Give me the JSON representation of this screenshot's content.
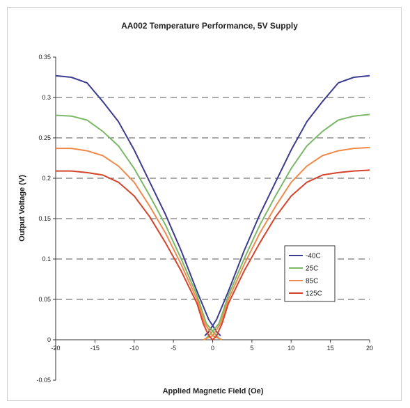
{
  "chart_data": {
    "type": "line",
    "title": "AA002 Temperature Performance, 5V Supply",
    "xlabel": "Applied Magnetic Field (Oe)",
    "ylabel": "Output Voltage (V)",
    "xlim": [
      -20,
      20
    ],
    "ylim": [
      -0.05,
      0.35
    ],
    "xticks": [
      -20,
      -15,
      -10,
      -5,
      0,
      5,
      10,
      15,
      20
    ],
    "yticks": [
      -0.05,
      0,
      0.05,
      0.1,
      0.15,
      0.2,
      0.25,
      0.3,
      0.35
    ],
    "xtick_labels": [
      "-20",
      "-15",
      "-10",
      "-5",
      "0",
      "5",
      "10",
      "15",
      "20"
    ],
    "ytick_labels": [
      "-0.05",
      "0",
      "0.05",
      "0.1",
      "0.15",
      "0.2",
      "0.25",
      "0.3",
      "0.35"
    ],
    "grid": "horizontal-dashed",
    "legend_position": "right-middle",
    "series": [
      {
        "name": "-40C",
        "color": "#3b3b8f",
        "branches": [
          [
            [
              -20,
              0.327
            ],
            [
              -18,
              0.325
            ],
            [
              -16,
              0.318
            ],
            [
              -14,
              0.295
            ],
            [
              -12,
              0.27
            ],
            [
              -10,
              0.235
            ],
            [
              -8,
              0.195
            ],
            [
              -6,
              0.155
            ],
            [
              -4,
              0.11
            ],
            [
              -2,
              0.06
            ],
            [
              -0.5,
              0.025
            ],
            [
              0.5,
              0.01
            ],
            [
              1,
              0.005
            ]
          ],
          [
            [
              -1,
              0.005
            ],
            [
              -0.5,
              0.01
            ],
            [
              0.5,
              0.025
            ],
            [
              2,
              0.06
            ],
            [
              4,
              0.11
            ],
            [
              6,
              0.155
            ],
            [
              8,
              0.195
            ],
            [
              10,
              0.235
            ],
            [
              12,
              0.27
            ],
            [
              14,
              0.295
            ],
            [
              16,
              0.318
            ],
            [
              18,
              0.325
            ],
            [
              20,
              0.327
            ]
          ]
        ]
      },
      {
        "name": "25C",
        "color": "#7ab867",
        "branches": [
          [
            [
              -20,
              0.278
            ],
            [
              -18,
              0.277
            ],
            [
              -16,
              0.272
            ],
            [
              -14,
              0.258
            ],
            [
              -12,
              0.24
            ],
            [
              -10,
              0.212
            ],
            [
              -8,
              0.178
            ],
            [
              -6,
              0.142
            ],
            [
              -4,
              0.1
            ],
            [
              -2,
              0.055
            ],
            [
              -0.8,
              0.02
            ],
            [
              0.5,
              0.005
            ],
            [
              1,
              0
            ]
          ],
          [
            [
              -1,
              0
            ],
            [
              -0.5,
              0.005
            ],
            [
              0.8,
              0.02
            ],
            [
              2,
              0.055
            ],
            [
              4,
              0.1
            ],
            [
              6,
              0.142
            ],
            [
              8,
              0.178
            ],
            [
              10,
              0.212
            ],
            [
              12,
              0.24
            ],
            [
              14,
              0.258
            ],
            [
              16,
              0.272
            ],
            [
              18,
              0.277
            ],
            [
              20,
              0.279
            ]
          ]
        ]
      },
      {
        "name": "85C",
        "color": "#f08a4b",
        "branches": [
          [
            [
              -20,
              0.237
            ],
            [
              -18,
              0.237
            ],
            [
              -16,
              0.234
            ],
            [
              -14,
              0.228
            ],
            [
              -12,
              0.215
            ],
            [
              -10,
              0.195
            ],
            [
              -8,
              0.165
            ],
            [
              -6,
              0.132
            ],
            [
              -4,
              0.093
            ],
            [
              -2,
              0.05
            ],
            [
              -1,
              0.02
            ],
            [
              0,
              0.005
            ],
            [
              1.2,
              0
            ]
          ],
          [
            [
              -1.2,
              0
            ],
            [
              0,
              0.005
            ],
            [
              1,
              0.02
            ],
            [
              2,
              0.05
            ],
            [
              4,
              0.093
            ],
            [
              6,
              0.132
            ],
            [
              8,
              0.165
            ],
            [
              10,
              0.195
            ],
            [
              12,
              0.215
            ],
            [
              14,
              0.228
            ],
            [
              16,
              0.234
            ],
            [
              18,
              0.237
            ],
            [
              20,
              0.238
            ]
          ]
        ]
      },
      {
        "name": "125C",
        "color": "#d4432b",
        "branches": [
          [
            [
              -20,
              0.209
            ],
            [
              -18,
              0.209
            ],
            [
              -16,
              0.207
            ],
            [
              -14,
              0.204
            ],
            [
              -12,
              0.195
            ],
            [
              -10,
              0.178
            ],
            [
              -8,
              0.152
            ],
            [
              -6,
              0.12
            ],
            [
              -4,
              0.085
            ],
            [
              -2,
              0.045
            ],
            [
              -1.2,
              0.02
            ],
            [
              -0.5,
              0.005
            ],
            [
              0,
              0
            ]
          ],
          [
            [
              0,
              0
            ],
            [
              0.5,
              0.005
            ],
            [
              1.2,
              0.02
            ],
            [
              2,
              0.045
            ],
            [
              4,
              0.085
            ],
            [
              6,
              0.12
            ],
            [
              8,
              0.152
            ],
            [
              10,
              0.178
            ],
            [
              12,
              0.195
            ],
            [
              14,
              0.204
            ],
            [
              16,
              0.207
            ],
            [
              18,
              0.209
            ],
            [
              20,
              0.21
            ]
          ]
        ]
      }
    ]
  }
}
